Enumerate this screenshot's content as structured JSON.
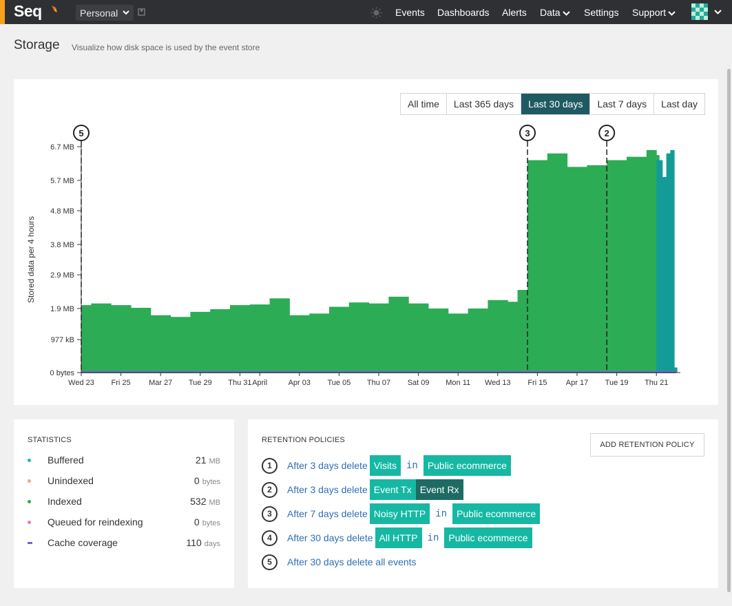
{
  "app": {
    "name": "Seq"
  },
  "workspace": {
    "selected": "Personal"
  },
  "nav": {
    "events": "Events",
    "dashboards": "Dashboards",
    "alerts": "Alerts",
    "data": "Data",
    "settings": "Settings",
    "support": "Support"
  },
  "page": {
    "title": "Storage",
    "subtitle": "Visualize how disk space is used by the event store"
  },
  "ranges": {
    "options": [
      "All time",
      "Last 365 days",
      "Last 30 days",
      "Last 7 days",
      "Last day"
    ],
    "selected": "Last 30 days"
  },
  "chart_data": {
    "type": "area",
    "ylabel": "Stored data per 4 hours",
    "y_ticks": [
      "0 bytes",
      "977 kB",
      "1.9 MB",
      "2.9 MB",
      "3.8 MB",
      "4.8 MB",
      "5.7 MB",
      "6.7 MB"
    ],
    "y_tick_values_mb": [
      0,
      0.977,
      1.9,
      2.9,
      3.8,
      4.8,
      5.7,
      6.7
    ],
    "ylim_mb": [
      0,
      6.7
    ],
    "x_ticks": [
      "Wed 23",
      "Fri 25",
      "Mar 27",
      "Tue 29",
      "Thu 31",
      "April",
      "Apr 03",
      "Tue 05",
      "Thu 07",
      "Sat 09",
      "Mon 11",
      "Wed 13",
      "Fri 15",
      "Apr 17",
      "Tue 19",
      "Thu 21"
    ],
    "x_tick_days": [
      0,
      2,
      4,
      6,
      8,
      9,
      11,
      13,
      15,
      17,
      19,
      21,
      23,
      25,
      27,
      29
    ],
    "xlim_days": [
      0,
      30
    ],
    "grid": false,
    "series": [
      {
        "name": "Indexed",
        "color": "#2cac55",
        "x_days": [
          0,
          0.5,
          1.5,
          2.5,
          3.5,
          4.5,
          5.5,
          6.5,
          7.5,
          8.5,
          9.5,
          10.5,
          11.5,
          12.5,
          13.5,
          14.5,
          15.5,
          16.5,
          17.5,
          18.5,
          19.5,
          20.5,
          21.5,
          22.0,
          22.5,
          23.5,
          24.5,
          25.5,
          26.5,
          27.5,
          28.5,
          29.0
        ],
        "values_mb": [
          2.0,
          2.05,
          2.0,
          1.92,
          1.7,
          1.65,
          1.8,
          1.88,
          2.0,
          2.02,
          2.2,
          1.7,
          1.75,
          1.95,
          2.08,
          2.05,
          2.25,
          2.05,
          1.9,
          1.75,
          1.9,
          2.15,
          2.1,
          2.45,
          6.3,
          6.5,
          6.1,
          6.15,
          6.3,
          6.4,
          6.6,
          6.45
        ]
      },
      {
        "name": "Buffered",
        "color": "#139c97",
        "x_days": [
          29.0,
          29.3,
          29.5,
          29.7,
          29.9
        ],
        "values_mb": [
          6.3,
          5.8,
          6.5,
          6.6,
          0.15
        ]
      }
    ],
    "markers": [
      {
        "label": "5",
        "day": 0
      },
      {
        "label": "3",
        "day": 22.5
      },
      {
        "label": "2",
        "day": 26.5
      }
    ]
  },
  "statistics": {
    "title": "STATISTICS",
    "items": [
      {
        "label": "Buffered",
        "value": "21",
        "unit": "MB",
        "color": "#1ab7b1"
      },
      {
        "label": "Unindexed",
        "value": "0",
        "unit": "bytes",
        "color": "#f4a582"
      },
      {
        "label": "Indexed",
        "value": "532",
        "unit": "MB",
        "color": "#2cac55"
      },
      {
        "label": "Queued for reindexing",
        "value": "0",
        "unit": "bytes",
        "color": "#e377c2"
      },
      {
        "label": "Cache coverage",
        "value": "110",
        "unit": "days",
        "color": "#7b5fd6"
      }
    ]
  },
  "retention": {
    "title": "RETENTION POLICIES",
    "add_label": "ADD RETENTION POLICY",
    "in_label": "in",
    "policies": [
      {
        "num": "1",
        "text": "After 3 days delete",
        "tags": [
          "Visits"
        ],
        "signal": "Public ecommerce"
      },
      {
        "num": "2",
        "text": "After 3 days delete",
        "tags": [
          "Event Tx",
          "Event Rx"
        ],
        "signal": ""
      },
      {
        "num": "3",
        "text": "After 7 days delete",
        "tags": [
          "Noisy HTTP"
        ],
        "signal": "Public ecommerce"
      },
      {
        "num": "4",
        "text": "After 30 days delete",
        "tags": [
          "All HTTP"
        ],
        "signal": "Public ecommerce"
      },
      {
        "num": "5",
        "text": "After 30 days delete all events",
        "tags": [],
        "signal": ""
      }
    ]
  }
}
